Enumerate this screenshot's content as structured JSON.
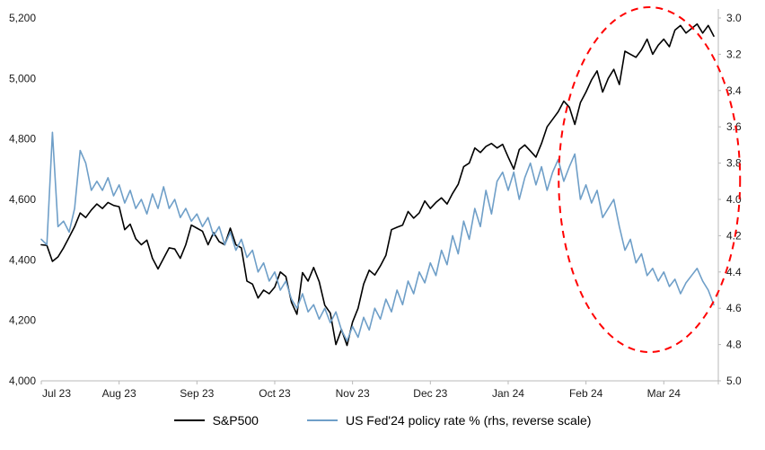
{
  "chart_data": {
    "type": "line",
    "title": "",
    "xlabel": "",
    "ylabel_left": "",
    "ylabel_right": "",
    "grid": false,
    "legend_position": "bottom",
    "x_ticks": [
      "Jul 23",
      "Aug 23",
      "Sep 23",
      "Oct 23",
      "Nov 23",
      "Dec 23",
      "Jan 24",
      "Feb 24",
      "Mar 24"
    ],
    "x_tick_indices": [
      0,
      14,
      28,
      42,
      56,
      70,
      84,
      98,
      112
    ],
    "left_axis": {
      "min": 4000,
      "max": 5200,
      "step": 200,
      "ticks": [
        "4,000",
        "4,200",
        "4,400",
        "4,600",
        "4,800",
        "5,000",
        "5,200"
      ]
    },
    "right_axis": {
      "min": 3.0,
      "max": 5.0,
      "step": 0.2,
      "reversed_scale": true,
      "ticks": [
        "3.0",
        "3.2",
        "3.4",
        "3.6",
        "3.8",
        "4.0",
        "4.2",
        "4.4",
        "4.6",
        "4.8",
        "5.0"
      ]
    },
    "series": [
      {
        "name": "S&P500",
        "axis": "left",
        "color": "#000000",
        "values": [
          4450,
          4448,
          4395,
          4410,
          4440,
          4475,
          4510,
          4555,
          4540,
          4565,
          4585,
          4570,
          4590,
          4580,
          4576,
          4500,
          4518,
          4470,
          4450,
          4465,
          4405,
          4370,
          4405,
          4440,
          4436,
          4405,
          4450,
          4515,
          4505,
          4495,
          4450,
          4490,
          4460,
          4450,
          4505,
          4450,
          4440,
          4330,
          4320,
          4274,
          4300,
          4288,
          4310,
          4360,
          4345,
          4260,
          4220,
          4358,
          4330,
          4375,
          4328,
          4250,
          4224,
          4120,
          4170,
          4117,
          4194,
          4240,
          4320,
          4366,
          4350,
          4380,
          4415,
          4500,
          4508,
          4515,
          4560,
          4538,
          4555,
          4595,
          4570,
          4590,
          4605,
          4585,
          4620,
          4650,
          4708,
          4720,
          4770,
          4755,
          4775,
          4785,
          4770,
          4782,
          4740,
          4700,
          4765,
          4780,
          4760,
          4740,
          4785,
          4840,
          4865,
          4890,
          4925,
          4905,
          4848,
          4920,
          4955,
          4995,
          5025,
          4955,
          5000,
          5030,
          4980,
          5090,
          5080,
          5070,
          5095,
          5130,
          5080,
          5110,
          5130,
          5105,
          5160,
          5175,
          5150,
          5165,
          5180,
          5150,
          5175,
          5140
        ]
      },
      {
        "name": "US Fed'24 policy rate % (rhs, reverse scale)",
        "axis": "right",
        "color": "#6f9fc8",
        "values": [
          4.22,
          4.25,
          3.63,
          4.15,
          4.12,
          4.18,
          4.05,
          3.73,
          3.8,
          3.95,
          3.9,
          3.95,
          3.88,
          3.98,
          3.92,
          4.02,
          3.95,
          4.05,
          4.0,
          4.08,
          3.97,
          4.05,
          3.93,
          4.05,
          4.0,
          4.1,
          4.05,
          4.12,
          4.08,
          4.15,
          4.1,
          4.2,
          4.15,
          4.25,
          4.18,
          4.28,
          4.22,
          4.32,
          4.28,
          4.4,
          4.35,
          4.45,
          4.4,
          4.5,
          4.45,
          4.55,
          4.6,
          4.52,
          4.62,
          4.58,
          4.66,
          4.6,
          4.68,
          4.62,
          4.72,
          4.78,
          4.7,
          4.76,
          4.65,
          4.72,
          4.6,
          4.66,
          4.55,
          4.62,
          4.5,
          4.58,
          4.45,
          4.52,
          4.4,
          4.46,
          4.35,
          4.42,
          4.28,
          4.36,
          4.2,
          4.3,
          4.12,
          4.22,
          4.05,
          4.15,
          3.95,
          4.08,
          3.9,
          3.85,
          3.95,
          3.85,
          4.0,
          3.88,
          3.8,
          3.92,
          3.82,
          3.95,
          3.85,
          3.78,
          3.9,
          3.82,
          3.75,
          4.0,
          3.92,
          4.02,
          3.95,
          4.1,
          4.05,
          4.0,
          4.15,
          4.28,
          4.22,
          4.35,
          4.3,
          4.42,
          4.38,
          4.45,
          4.4,
          4.48,
          4.44,
          4.52,
          4.46,
          4.42,
          4.38,
          4.45,
          4.5,
          4.58
        ]
      }
    ],
    "annotation": {
      "shape": "ellipse",
      "style": "dashed",
      "color": "#ff0000",
      "x_range_indices": [
        92,
        121
      ]
    },
    "legend": {
      "items": [
        "S&P500",
        "US Fed'24 policy rate % (rhs, reverse scale)"
      ]
    }
  }
}
